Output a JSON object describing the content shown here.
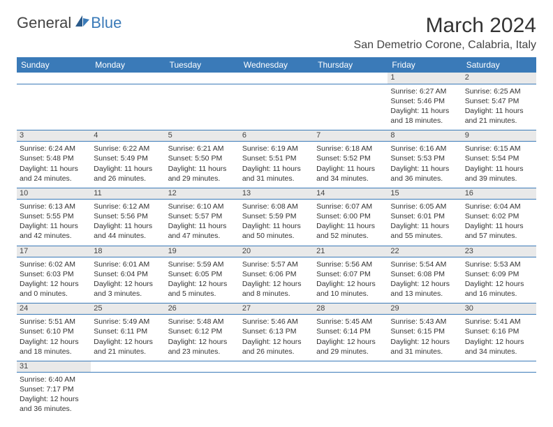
{
  "logo": {
    "general": "General",
    "blue": "Blue"
  },
  "title": "March 2024",
  "location": "San Demetrio Corone, Calabria, Italy",
  "colors": {
    "header_bg": "#3a7ab8",
    "header_fg": "#ffffff",
    "daynum_bg": "#e9e9e9",
    "rule": "#3a7ab8"
  },
  "weekdays": [
    "Sunday",
    "Monday",
    "Tuesday",
    "Wednesday",
    "Thursday",
    "Friday",
    "Saturday"
  ],
  "weeks": [
    {
      "days": [
        null,
        null,
        null,
        null,
        null,
        {
          "n": "1",
          "sr": "6:27 AM",
          "ss": "5:46 PM",
          "dl": "11 hours and 18 minutes."
        },
        {
          "n": "2",
          "sr": "6:25 AM",
          "ss": "5:47 PM",
          "dl": "11 hours and 21 minutes."
        }
      ]
    },
    {
      "days": [
        {
          "n": "3",
          "sr": "6:24 AM",
          "ss": "5:48 PM",
          "dl": "11 hours and 24 minutes."
        },
        {
          "n": "4",
          "sr": "6:22 AM",
          "ss": "5:49 PM",
          "dl": "11 hours and 26 minutes."
        },
        {
          "n": "5",
          "sr": "6:21 AM",
          "ss": "5:50 PM",
          "dl": "11 hours and 29 minutes."
        },
        {
          "n": "6",
          "sr": "6:19 AM",
          "ss": "5:51 PM",
          "dl": "11 hours and 31 minutes."
        },
        {
          "n": "7",
          "sr": "6:18 AM",
          "ss": "5:52 PM",
          "dl": "11 hours and 34 minutes."
        },
        {
          "n": "8",
          "sr": "6:16 AM",
          "ss": "5:53 PM",
          "dl": "11 hours and 36 minutes."
        },
        {
          "n": "9",
          "sr": "6:15 AM",
          "ss": "5:54 PM",
          "dl": "11 hours and 39 minutes."
        }
      ]
    },
    {
      "days": [
        {
          "n": "10",
          "sr": "6:13 AM",
          "ss": "5:55 PM",
          "dl": "11 hours and 42 minutes."
        },
        {
          "n": "11",
          "sr": "6:12 AM",
          "ss": "5:56 PM",
          "dl": "11 hours and 44 minutes."
        },
        {
          "n": "12",
          "sr": "6:10 AM",
          "ss": "5:57 PM",
          "dl": "11 hours and 47 minutes."
        },
        {
          "n": "13",
          "sr": "6:08 AM",
          "ss": "5:59 PM",
          "dl": "11 hours and 50 minutes."
        },
        {
          "n": "14",
          "sr": "6:07 AM",
          "ss": "6:00 PM",
          "dl": "11 hours and 52 minutes."
        },
        {
          "n": "15",
          "sr": "6:05 AM",
          "ss": "6:01 PM",
          "dl": "11 hours and 55 minutes."
        },
        {
          "n": "16",
          "sr": "6:04 AM",
          "ss": "6:02 PM",
          "dl": "11 hours and 57 minutes."
        }
      ]
    },
    {
      "days": [
        {
          "n": "17",
          "sr": "6:02 AM",
          "ss": "6:03 PM",
          "dl": "12 hours and 0 minutes."
        },
        {
          "n": "18",
          "sr": "6:01 AM",
          "ss": "6:04 PM",
          "dl": "12 hours and 3 minutes."
        },
        {
          "n": "19",
          "sr": "5:59 AM",
          "ss": "6:05 PM",
          "dl": "12 hours and 5 minutes."
        },
        {
          "n": "20",
          "sr": "5:57 AM",
          "ss": "6:06 PM",
          "dl": "12 hours and 8 minutes."
        },
        {
          "n": "21",
          "sr": "5:56 AM",
          "ss": "6:07 PM",
          "dl": "12 hours and 10 minutes."
        },
        {
          "n": "22",
          "sr": "5:54 AM",
          "ss": "6:08 PM",
          "dl": "12 hours and 13 minutes."
        },
        {
          "n": "23",
          "sr": "5:53 AM",
          "ss": "6:09 PM",
          "dl": "12 hours and 16 minutes."
        }
      ]
    },
    {
      "days": [
        {
          "n": "24",
          "sr": "5:51 AM",
          "ss": "6:10 PM",
          "dl": "12 hours and 18 minutes."
        },
        {
          "n": "25",
          "sr": "5:49 AM",
          "ss": "6:11 PM",
          "dl": "12 hours and 21 minutes."
        },
        {
          "n": "26",
          "sr": "5:48 AM",
          "ss": "6:12 PM",
          "dl": "12 hours and 23 minutes."
        },
        {
          "n": "27",
          "sr": "5:46 AM",
          "ss": "6:13 PM",
          "dl": "12 hours and 26 minutes."
        },
        {
          "n": "28",
          "sr": "5:45 AM",
          "ss": "6:14 PM",
          "dl": "12 hours and 29 minutes."
        },
        {
          "n": "29",
          "sr": "5:43 AM",
          "ss": "6:15 PM",
          "dl": "12 hours and 31 minutes."
        },
        {
          "n": "30",
          "sr": "5:41 AM",
          "ss": "6:16 PM",
          "dl": "12 hours and 34 minutes."
        }
      ]
    },
    {
      "days": [
        {
          "n": "31",
          "sr": "6:40 AM",
          "ss": "7:17 PM",
          "dl": "12 hours and 36 minutes."
        },
        null,
        null,
        null,
        null,
        null,
        null
      ]
    }
  ],
  "labels": {
    "sunrise": "Sunrise:",
    "sunset": "Sunset:",
    "daylight": "Daylight:"
  }
}
